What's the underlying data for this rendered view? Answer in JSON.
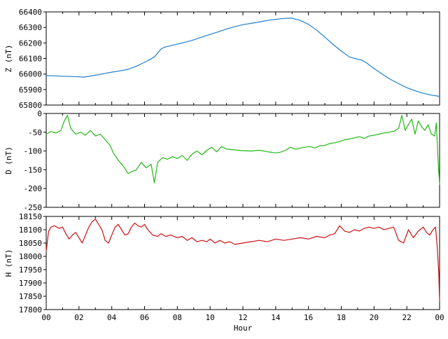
{
  "chart_data": [
    {
      "type": "line",
      "ylabel": "Z (nT)",
      "ylim": [
        65800,
        66400
      ],
      "yticks": [
        "66400",
        "66300",
        "66200",
        "66100",
        "66000",
        "65900",
        "65800"
      ],
      "xlim": [
        0,
        24
      ],
      "grid": false,
      "color": "#1f7fcf",
      "series": [
        {
          "x": [
            0,
            0.5,
            1,
            1.5,
            2,
            2.3,
            2.6,
            3,
            3.5,
            4,
            4.5,
            5,
            5.5,
            6,
            6.3,
            6.6,
            7,
            7.2,
            7.5,
            8,
            8.5,
            9,
            9.5,
            10,
            10.5,
            11,
            11.5,
            12,
            12.5,
            13,
            13.5,
            14,
            14.5,
            15,
            15.5,
            16,
            16.5,
            17,
            17.5,
            18,
            18.5,
            19,
            19.2,
            19.5,
            20,
            20.5,
            21,
            21.5,
            22,
            22.5,
            23,
            23.5,
            24
          ],
          "values": [
            65990,
            65988,
            65986,
            65984,
            65982,
            65980,
            65985,
            65992,
            66002,
            66012,
            66020,
            66030,
            66050,
            66075,
            66092,
            66110,
            66160,
            66172,
            66180,
            66192,
            66205,
            66220,
            66238,
            66255,
            66272,
            66290,
            66305,
            66318,
            66326,
            66335,
            66345,
            66352,
            66358,
            66360,
            66345,
            66320,
            66282,
            66238,
            66190,
            66148,
            66110,
            66095,
            66092,
            66075,
            66035,
            66000,
            65965,
            65938,
            65912,
            65892,
            65876,
            65864,
            65856
          ]
        }
      ]
    },
    {
      "type": "line",
      "ylabel": "D (nT)",
      "ylim": [
        -250,
        0
      ],
      "yticks": [
        "0",
        "-50",
        "-100",
        "-150",
        "-200",
        "-250"
      ],
      "xlim": [
        0,
        24
      ],
      "grid": false,
      "color": "#22b814",
      "series": [
        {
          "x": [
            0,
            0.3,
            0.6,
            0.9,
            1.1,
            1.3,
            1.5,
            1.8,
            2.1,
            2.4,
            2.7,
            3,
            3.3,
            3.6,
            3.9,
            4.1,
            4.4,
            4.7,
            5,
            5.2,
            5.5,
            5.8,
            6.1,
            6.4,
            6.6,
            6.8,
            7.1,
            7.4,
            7.7,
            8,
            8.3,
            8.6,
            8.9,
            9.2,
            9.5,
            9.8,
            10.1,
            10.4,
            10.7,
            11,
            11.5,
            12,
            12.5,
            13,
            13.5,
            14,
            14.3,
            14.6,
            14.9,
            15.2,
            15.5,
            15.8,
            16.1,
            16.4,
            16.7,
            17,
            17.3,
            17.6,
            17.9,
            18.2,
            18.5,
            18.8,
            19.1,
            19.4,
            19.7,
            20,
            20.3,
            20.6,
            20.9,
            21.2,
            21.5,
            21.7,
            21.9,
            22.1,
            22.3,
            22.5,
            22.7,
            22.9,
            23.1,
            23.3,
            23.5,
            23.7,
            23.8,
            23.9,
            24
          ],
          "values": [
            -55,
            -48,
            -52,
            -45,
            -20,
            -5,
            -40,
            -55,
            -50,
            -58,
            -45,
            -60,
            -55,
            -70,
            -85,
            -105,
            -125,
            -140,
            -160,
            -155,
            -150,
            -130,
            -145,
            -135,
            -185,
            -130,
            -118,
            -122,
            -115,
            -120,
            -112,
            -125,
            -108,
            -100,
            -110,
            -98,
            -90,
            -102,
            -88,
            -95,
            -97,
            -99,
            -100,
            -98,
            -102,
            -105,
            -103,
            -98,
            -90,
            -95,
            -92,
            -90,
            -88,
            -92,
            -86,
            -85,
            -80,
            -78,
            -75,
            -70,
            -68,
            -65,
            -62,
            -66,
            -60,
            -58,
            -55,
            -52,
            -50,
            -48,
            -40,
            -5,
            -45,
            -30,
            -15,
            -55,
            -20,
            -35,
            -45,
            -30,
            -55,
            -60,
            -25,
            -120,
            -190
          ]
        }
      ]
    },
    {
      "type": "line",
      "ylabel": "H (nT)",
      "ylim": [
        17800,
        18150
      ],
      "yticks": [
        "18150",
        "18100",
        "18050",
        "18000",
        "17950",
        "17900",
        "17850",
        "17800"
      ],
      "xlim": [
        0,
        24
      ],
      "grid": false,
      "color": "#cc1111",
      "xticks": [
        "00",
        "02",
        "04",
        "06",
        "08",
        "10",
        "12",
        "14",
        "16",
        "18",
        "20",
        "22",
        "00"
      ],
      "xlabel": "Hour",
      "series": [
        {
          "x": [
            0,
            0.15,
            0.3,
            0.5,
            0.8,
            1,
            1.2,
            1.4,
            1.6,
            1.8,
            2,
            2.2,
            2.4,
            2.6,
            2.8,
            3,
            3.2,
            3.4,
            3.6,
            3.8,
            4,
            4.2,
            4.4,
            4.6,
            4.8,
            5,
            5.2,
            5.4,
            5.6,
            5.8,
            6,
            6.2,
            6.5,
            6.8,
            7,
            7.3,
            7.6,
            8,
            8.3,
            8.6,
            8.9,
            9.2,
            9.5,
            9.8,
            10,
            10.3,
            10.6,
            10.9,
            11.2,
            11.5,
            12,
            12.5,
            13,
            13.5,
            14,
            14.5,
            15,
            15.5,
            16,
            16.5,
            17,
            17.3,
            17.6,
            17.9,
            18.2,
            18.5,
            18.8,
            19.1,
            19.4,
            19.7,
            20,
            20.3,
            20.6,
            20.9,
            21.2,
            21.5,
            21.8,
            22.1,
            22.4,
            22.7,
            23,
            23.2,
            23.4,
            23.6,
            23.75,
            23.85,
            23.95,
            24
          ],
          "values": [
            18020,
            18095,
            18110,
            18115,
            18105,
            18110,
            18085,
            18065,
            18080,
            18090,
            18070,
            18050,
            18080,
            18110,
            18130,
            18140,
            18120,
            18100,
            18060,
            18050,
            18080,
            18110,
            18120,
            18100,
            18080,
            18085,
            18110,
            18125,
            18115,
            18110,
            18120,
            18100,
            18080,
            18075,
            18085,
            18075,
            18080,
            18070,
            18075,
            18060,
            18070,
            18055,
            18060,
            18055,
            18065,
            18050,
            18060,
            18050,
            18055,
            18045,
            18050,
            18055,
            18060,
            18055,
            18065,
            18060,
            18065,
            18070,
            18065,
            18075,
            18070,
            18080,
            18085,
            18115,
            18095,
            18090,
            18100,
            18095,
            18105,
            18110,
            18105,
            18110,
            18100,
            18105,
            18110,
            18060,
            18050,
            18100,
            18070,
            18095,
            18110,
            18090,
            18080,
            18100,
            18110,
            18040,
            17940,
            17830
          ]
        }
      ]
    }
  ]
}
